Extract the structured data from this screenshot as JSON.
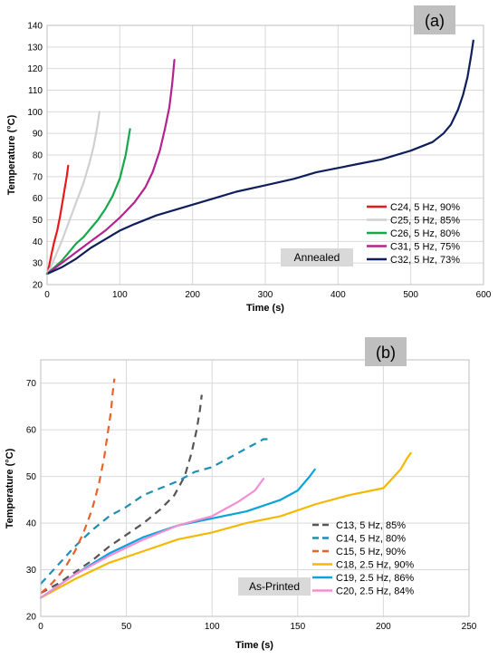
{
  "chart_data": [
    {
      "type": "line",
      "panel_tag": "(a)",
      "annotation": "Annealed",
      "xlabel": "Time (s)",
      "ylabel": "Temperature (°C)",
      "xlim": [
        0,
        600
      ],
      "ylim": [
        20,
        140
      ],
      "xticks": [
        0,
        100,
        200,
        300,
        400,
        500,
        600
      ],
      "yticks": [
        20,
        30,
        40,
        50,
        60,
        70,
        80,
        90,
        100,
        110,
        120,
        130,
        140
      ],
      "grid": true,
      "legend_position": "bottom-right",
      "series": [
        {
          "name": "C24, 5 Hz, 90%",
          "color": "#e8191c",
          "dash": "solid",
          "x": [
            0,
            3,
            6,
            10,
            14,
            18,
            21,
            24,
            27,
            29
          ],
          "y": [
            25,
            29,
            34,
            40,
            45,
            52,
            58,
            64,
            70,
            75
          ]
        },
        {
          "name": "C25, 5 Hz, 85%",
          "color": "#d0d0d0",
          "dash": "solid",
          "x": [
            0,
            5,
            10,
            20,
            30,
            40,
            50,
            58,
            64,
            69,
            72
          ],
          "y": [
            25,
            28,
            32,
            40,
            49,
            58,
            67,
            76,
            84,
            93,
            100
          ]
        },
        {
          "name": "C26, 5 Hz, 80%",
          "color": "#14a84a",
          "dash": "solid",
          "x": [
            0,
            10,
            20,
            30,
            40,
            50,
            60,
            70,
            80,
            90,
            100,
            108,
            114
          ],
          "y": [
            25,
            28,
            31,
            35,
            39,
            42,
            46,
            50,
            55,
            61,
            69,
            80,
            92
          ]
        },
        {
          "name": "C31, 5 Hz, 75%",
          "color": "#b5218f",
          "dash": "solid",
          "x": [
            0,
            20,
            40,
            60,
            80,
            100,
            120,
            135,
            145,
            155,
            162,
            168,
            172,
            175
          ],
          "y": [
            25,
            30,
            35,
            40,
            45,
            51,
            58,
            65,
            72,
            82,
            92,
            102,
            113,
            124
          ]
        },
        {
          "name": "C32, 5 Hz, 73%",
          "color": "#0f1f5c",
          "dash": "solid",
          "x": [
            0,
            20,
            40,
            60,
            80,
            100,
            120,
            150,
            180,
            200,
            230,
            260,
            300,
            340,
            370,
            400,
            430,
            460,
            500,
            530,
            545,
            555,
            565,
            572,
            578,
            583,
            586
          ],
          "y": [
            25,
            28,
            32,
            37,
            41,
            45,
            48,
            52,
            55,
            57,
            60,
            63,
            66,
            69,
            72,
            74,
            76,
            78,
            82,
            86,
            90,
            94,
            101,
            108,
            116,
            126,
            133
          ]
        }
      ]
    },
    {
      "type": "line",
      "panel_tag": "(b)",
      "annotation": "As-Printed",
      "xlabel": "Time (s)",
      "ylabel": "Temperature (°C)",
      "xlim": [
        0,
        250
      ],
      "ylim": [
        20,
        75
      ],
      "xticks": [
        0,
        50,
        100,
        150,
        200,
        250
      ],
      "yticks": [
        20,
        30,
        40,
        50,
        60,
        70
      ],
      "grid": true,
      "legend_position": "bottom-right",
      "series": [
        {
          "name": "C13, 5 Hz, 85%",
          "color": "#555555",
          "dash": "dashed",
          "x": [
            0,
            10,
            20,
            30,
            40,
            50,
            60,
            70,
            78,
            84,
            88,
            91,
            93,
            94
          ],
          "y": [
            25,
            27,
            29.5,
            32,
            35,
            37.5,
            40,
            43,
            46,
            50,
            55,
            60,
            64.5,
            67.5
          ]
        },
        {
          "name": "C14, 5 Hz, 80%",
          "color": "#1d8fb5",
          "dash": "dashed",
          "x": [
            0,
            10,
            20,
            30,
            40,
            50,
            60,
            70,
            80,
            90,
            100,
            110,
            120,
            130,
            135
          ],
          "y": [
            27,
            31,
            35,
            38.5,
            41.5,
            43.5,
            46,
            47.5,
            49,
            51,
            52,
            54,
            56,
            58,
            58
          ]
        },
        {
          "name": "C15, 5 Hz, 90%",
          "color": "#e8622a",
          "dash": "dashed",
          "x": [
            0,
            5,
            10,
            15,
            20,
            25,
            30,
            34,
            37,
            39,
            41,
            42,
            43
          ],
          "y": [
            25,
            26.5,
            28.5,
            31,
            34,
            38,
            43,
            48.5,
            54,
            59,
            64,
            68,
            71
          ]
        },
        {
          "name": "C18, 2.5 Hz, 90%",
          "color": "#f5b800",
          "dash": "solid",
          "x": [
            0,
            20,
            40,
            60,
            80,
            100,
            120,
            140,
            160,
            180,
            200,
            205,
            210,
            214,
            216
          ],
          "y": [
            24,
            28,
            31.5,
            34,
            36.5,
            38,
            40,
            41.5,
            44,
            46,
            47.5,
            49.5,
            51.5,
            54,
            55
          ]
        },
        {
          "name": "C19, 2.5 Hz, 86%",
          "color": "#0ba3dc",
          "dash": "solid",
          "x": [
            0,
            20,
            40,
            60,
            80,
            100,
            120,
            140,
            150,
            157,
            160
          ],
          "y": [
            24,
            29,
            33.5,
            37,
            39.5,
            41,
            42.5,
            45,
            47,
            50,
            51.5
          ]
        },
        {
          "name": "C20, 2.5 Hz, 84%",
          "color": "#f28fd4",
          "dash": "solid",
          "x": [
            0,
            20,
            40,
            60,
            80,
            100,
            115,
            125,
            130
          ],
          "y": [
            24,
            29,
            33,
            36.5,
            39.5,
            41.5,
            44.5,
            47,
            49.5
          ]
        }
      ]
    }
  ]
}
